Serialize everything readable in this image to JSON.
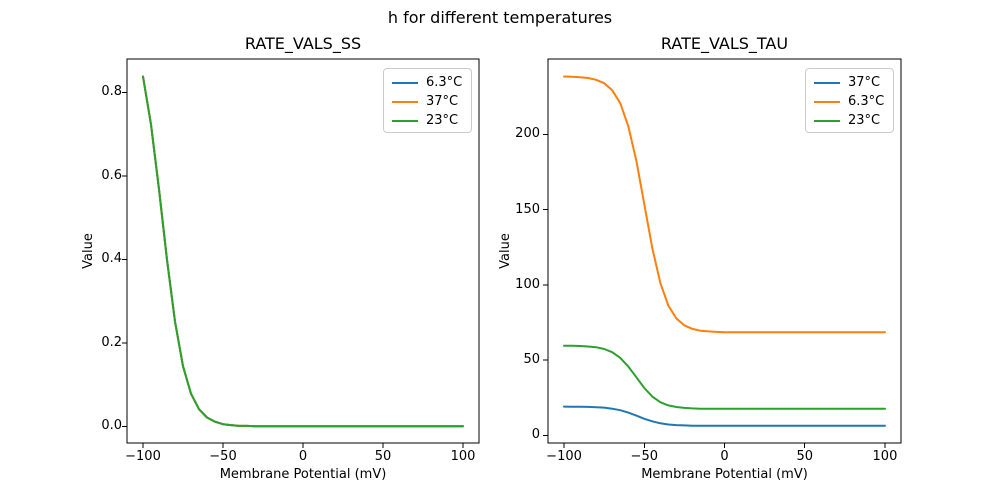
{
  "suptitle": "h for different temperatures",
  "palette": {
    "blue": "#1f77b4",
    "orange": "#ff7f0e",
    "green": "#2ca02c",
    "legend_border": "#cccccc",
    "axes_color": "#000000"
  },
  "chart_data": [
    {
      "type": "line",
      "title": "RATE_VALS_SS",
      "xlabel": "Membrane Potential (mV)",
      "ylabel": "Value",
      "xlim": [
        -110,
        110
      ],
      "ylim": [
        -0.04,
        0.88
      ],
      "xticks": [
        -100,
        -50,
        0,
        50,
        100
      ],
      "xtick_labels": [
        "−100",
        "−50",
        "0",
        "50",
        "100"
      ],
      "yticks": [
        0,
        0.2,
        0.4,
        0.6,
        0.8
      ],
      "ytick_labels": [
        "0.0",
        "0.2",
        "0.4",
        "0.6",
        "0.8"
      ],
      "grid": false,
      "legend_position": "upper right",
      "note": "all three temperature curves overlap exactly; green (last drawn) is visible",
      "x": [
        -100,
        -95,
        -90,
        -85,
        -80,
        -75,
        -70,
        -65,
        -60,
        -55,
        -50,
        -45,
        -40,
        -35,
        -30,
        -25,
        -20,
        -15,
        -10,
        -5,
        0,
        10,
        20,
        30,
        40,
        50,
        60,
        70,
        80,
        90,
        100
      ],
      "series": [
        {
          "name": "6.3°C",
          "color": "#1f77b4",
          "values": [
            0.838,
            0.723,
            0.568,
            0.399,
            0.251,
            0.144,
            0.078,
            0.041,
            0.021,
            0.011,
            0.005,
            0.003,
            0.001,
            0.001,
            0,
            0,
            0,
            0,
            0,
            0,
            0,
            0,
            0,
            0,
            0,
            0,
            0,
            0,
            0,
            0,
            0
          ]
        },
        {
          "name": "37°C",
          "color": "#ff7f0e",
          "values": [
            0.838,
            0.723,
            0.568,
            0.399,
            0.251,
            0.144,
            0.078,
            0.041,
            0.021,
            0.011,
            0.005,
            0.003,
            0.001,
            0.001,
            0,
            0,
            0,
            0,
            0,
            0,
            0,
            0,
            0,
            0,
            0,
            0,
            0,
            0,
            0,
            0,
            0
          ]
        },
        {
          "name": "23°C",
          "color": "#2ca02c",
          "values": [
            0.838,
            0.723,
            0.568,
            0.399,
            0.251,
            0.144,
            0.078,
            0.041,
            0.021,
            0.011,
            0.005,
            0.003,
            0.001,
            0.001,
            0,
            0,
            0,
            0,
            0,
            0,
            0,
            0,
            0,
            0,
            0,
            0,
            0,
            0,
            0,
            0,
            0
          ]
        }
      ]
    },
    {
      "type": "line",
      "title": "RATE_VALS_TAU",
      "xlabel": "Membrane Potential (mV)",
      "ylabel": "Value",
      "xlim": [
        -110,
        110
      ],
      "ylim": [
        -5,
        250
      ],
      "xticks": [
        -100,
        -50,
        0,
        50,
        100
      ],
      "xtick_labels": [
        "−100",
        "−50",
        "0",
        "50",
        "100"
      ],
      "yticks": [
        0,
        50,
        100,
        150,
        200
      ],
      "ytick_labels": [
        "0",
        "50",
        "100",
        "150",
        "200"
      ],
      "grid": false,
      "legend_position": "upper right",
      "x": [
        -100,
        -95,
        -90,
        -85,
        -80,
        -75,
        -70,
        -65,
        -60,
        -55,
        -50,
        -45,
        -40,
        -35,
        -30,
        -25,
        -20,
        -15,
        -10,
        -5,
        0,
        10,
        20,
        30,
        40,
        50,
        60,
        70,
        80,
        90,
        100
      ],
      "series": [
        {
          "name": "37°C",
          "color": "#1f77b4",
          "values": [
            19.2,
            19.1,
            19.1,
            19.0,
            18.8,
            18.5,
            17.8,
            16.8,
            15.2,
            13.2,
            11.1,
            9.4,
            8.1,
            7.3,
            6.9,
            6.7,
            6.5,
            6.5,
            6.4,
            6.4,
            6.4,
            6.4,
            6.4,
            6.4,
            6.4,
            6.4,
            6.4,
            6.4,
            6.4,
            6.4,
            6.4
          ]
        },
        {
          "name": "6.3°C",
          "color": "#ff7f0e",
          "values": [
            238.4,
            238.2,
            237.9,
            237.4,
            236.2,
            233.9,
            229.3,
            220.7,
            205.6,
            182.6,
            153.5,
            124.4,
            101.4,
            86.3,
            77.7,
            73.1,
            70.8,
            69.6,
            69.1,
            68.8,
            68.6,
            68.5,
            68.5,
            68.5,
            68.5,
            68.5,
            68.5,
            68.5,
            68.5,
            68.5,
            68.5
          ]
        },
        {
          "name": "23°C",
          "color": "#2ca02c",
          "values": [
            59.6,
            59.6,
            59.4,
            59.1,
            58.6,
            57.4,
            55.3,
            51.6,
            45.9,
            38.7,
            31.5,
            25.8,
            22.1,
            20.0,
            18.9,
            18.3,
            18.0,
            17.8,
            17.8,
            17.7,
            17.7,
            17.7,
            17.7,
            17.7,
            17.7,
            17.7,
            17.7,
            17.7,
            17.7,
            17.7,
            17.7
          ]
        }
      ]
    }
  ]
}
